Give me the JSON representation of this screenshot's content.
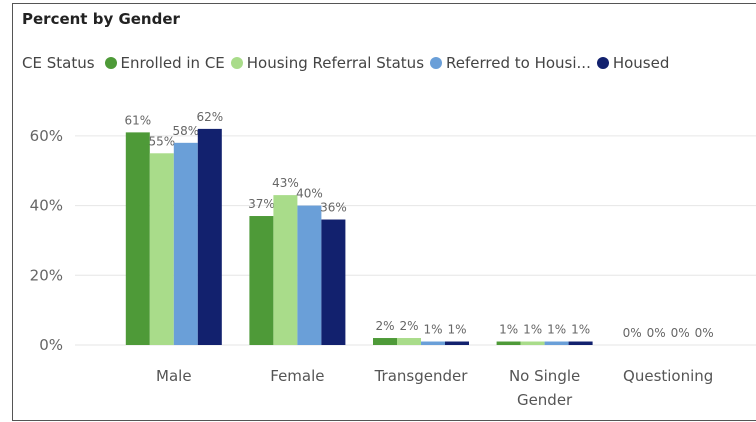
{
  "chart_data": {
    "type": "bar",
    "title": "Percent by Gender",
    "legend_title": "CE Status",
    "categories": [
      "Male",
      "Female",
      "Transgender",
      "No Single Gender",
      "Questioning"
    ],
    "series": [
      {
        "name": "Enrolled in CE",
        "color": "#4e9a38",
        "values": [
          61,
          37,
          2,
          1,
          0
        ],
        "value_labels": [
          "61%",
          "37%",
          "2%",
          "1%",
          "0%"
        ]
      },
      {
        "name": "Housing Referral Status",
        "color": "#a9dc8a",
        "values": [
          55,
          43,
          2,
          1,
          0
        ],
        "value_labels": [
          "55%",
          "43%",
          "2%",
          "1%",
          "0%"
        ]
      },
      {
        "name": "Referred to Housi...",
        "color": "#6a9fd8",
        "values": [
          58,
          40,
          1,
          1,
          0
        ],
        "value_labels": [
          "58%",
          "40%",
          "1%",
          "1%",
          "0%"
        ]
      },
      {
        "name": "Housed",
        "color": "#12216e",
        "values": [
          62,
          36,
          1,
          1,
          0
        ],
        "value_labels": [
          "62%",
          "36%",
          "1%",
          "1%",
          "0%"
        ]
      }
    ],
    "ylim": [
      0,
      70
    ],
    "yticks": [
      {
        "value": 0,
        "label": "0%"
      },
      {
        "value": 20,
        "label": "20%"
      },
      {
        "value": 40,
        "label": "40%"
      },
      {
        "value": 60,
        "label": "60%"
      }
    ],
    "grid": true,
    "legend_position": "top"
  }
}
